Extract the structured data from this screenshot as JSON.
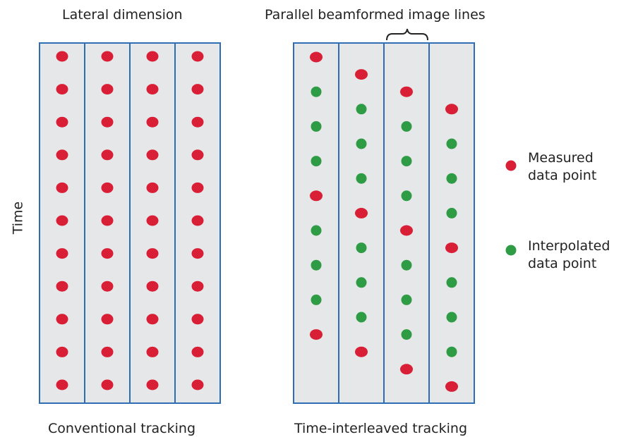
{
  "labels": {
    "lateral_dimension": "Lateral dimension",
    "parallel_lines": "Parallel beamformed image lines",
    "time": "Time",
    "conventional": "Conventional tracking",
    "interleaved": "Time-interleaved tracking"
  },
  "legend": {
    "measured_line1": "Measured",
    "measured_line2": "data point",
    "interpolated_line1": "Interpolated",
    "interpolated_line2": "data point"
  },
  "colors": {
    "measured": "#d91f35",
    "interpolated": "#2e9b45",
    "column_fill": "#e6e7e9",
    "column_border": "#2f6db5"
  },
  "conventional": {
    "columns": 4,
    "rows": 11,
    "point_type": "measured"
  },
  "interleaved": {
    "columns": [
      [
        "measured",
        "interpolated",
        "interpolated",
        "interpolated",
        "measured",
        "interpolated",
        "interpolated",
        "interpolated",
        "measured"
      ],
      [
        "measured",
        "interpolated",
        "interpolated",
        "interpolated",
        "measured",
        "interpolated",
        "interpolated",
        "interpolated",
        "measured"
      ],
      [
        "measured",
        "interpolated",
        "interpolated",
        "interpolated",
        "measured",
        "interpolated",
        "interpolated",
        "interpolated",
        "measured"
      ],
      [
        "measured",
        "interpolated",
        "interpolated",
        "interpolated",
        "measured",
        "interpolated",
        "interpolated",
        "interpolated",
        "measured"
      ]
    ]
  }
}
